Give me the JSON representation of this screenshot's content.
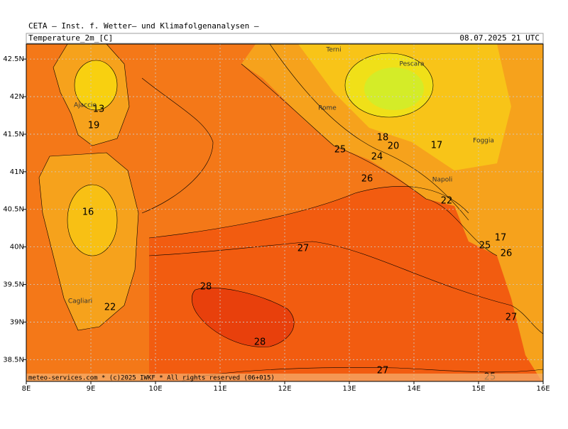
{
  "header": {
    "source": "CETA — Inst. f. Wetter— und Klimafolgenanalysen —",
    "variable": "Temperature_2m_[C]",
    "valid_time": "08.07.2025 21 UTC"
  },
  "map": {
    "lon_range": [
      8,
      16
    ],
    "lat_range": [
      38.21,
      42.7
    ],
    "lon_ticks": [
      {
        "value": 8,
        "label": "8E"
      },
      {
        "value": 9,
        "label": "9E"
      },
      {
        "value": 10,
        "label": "10E"
      },
      {
        "value": 11,
        "label": "11E"
      },
      {
        "value": 12,
        "label": "12E"
      },
      {
        "value": 13,
        "label": "13E"
      },
      {
        "value": 14,
        "label": "14E"
      },
      {
        "value": 15,
        "label": "15E"
      },
      {
        "value": 16,
        "label": "16E"
      }
    ],
    "lat_ticks": [
      {
        "value": 38.5,
        "label": "38.5N"
      },
      {
        "value": 39,
        "label": "39N"
      },
      {
        "value": 39.5,
        "label": "39.5N"
      },
      {
        "value": 40,
        "label": "40N"
      },
      {
        "value": 40.5,
        "label": "40.5N"
      },
      {
        "value": 41,
        "label": "41N"
      },
      {
        "value": 41.5,
        "label": "41.5N"
      },
      {
        "value": 42,
        "label": "42N"
      },
      {
        "value": 42.5,
        "label": "42.5N"
      }
    ],
    "contour_labels": [
      13,
      19,
      16,
      22,
      18,
      20,
      24,
      25,
      17,
      26,
      22,
      27,
      28,
      28,
      17,
      25,
      26,
      27,
      27,
      25
    ],
    "places": [
      "Terni",
      "Pescara",
      "Ajaccio",
      "Rome",
      "Foggia",
      "Napoli",
      "Cagliari"
    ]
  },
  "footer": "meteo-services.com * (c)2025 IWKF * All rights reserved (06+015)"
}
